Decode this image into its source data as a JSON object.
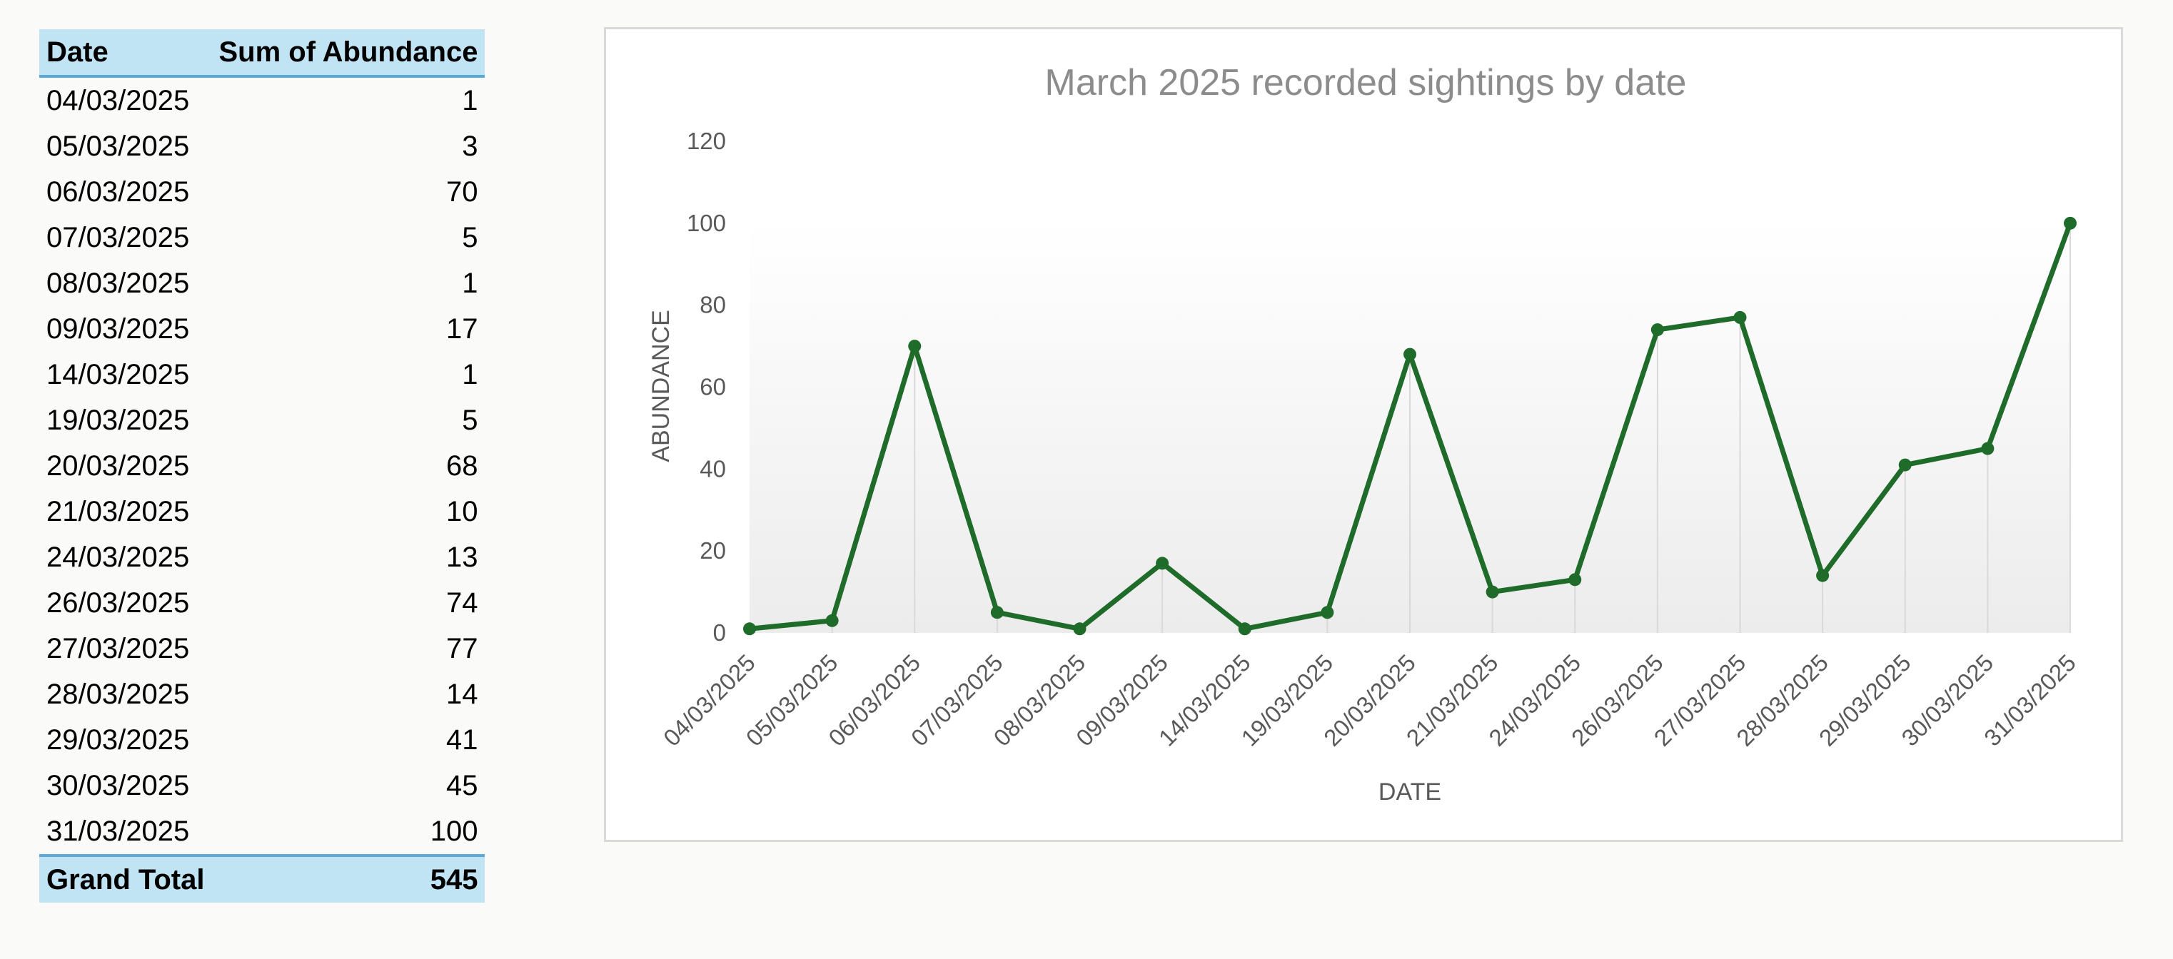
{
  "pivot": {
    "headers": {
      "date": "Date",
      "sum": "Sum of Abundance"
    },
    "rows": [
      {
        "date": "04/03/2025",
        "value": "1"
      },
      {
        "date": "05/03/2025",
        "value": "3"
      },
      {
        "date": "06/03/2025",
        "value": "70"
      },
      {
        "date": "07/03/2025",
        "value": "5"
      },
      {
        "date": "08/03/2025",
        "value": "1"
      },
      {
        "date": "09/03/2025",
        "value": "17"
      },
      {
        "date": "14/03/2025",
        "value": "1"
      },
      {
        "date": "19/03/2025",
        "value": "5"
      },
      {
        "date": "20/03/2025",
        "value": "68"
      },
      {
        "date": "21/03/2025",
        "value": "10"
      },
      {
        "date": "24/03/2025",
        "value": "13"
      },
      {
        "date": "26/03/2025",
        "value": "74"
      },
      {
        "date": "27/03/2025",
        "value": "77"
      },
      {
        "date": "28/03/2025",
        "value": "14"
      },
      {
        "date": "29/03/2025",
        "value": "41"
      },
      {
        "date": "30/03/2025",
        "value": "45"
      },
      {
        "date": "31/03/2025",
        "value": "100"
      }
    ],
    "total": {
      "label": "Grand Total",
      "value": "545"
    }
  },
  "colors": {
    "line": "#1e6b2a",
    "header_fill": "#c0e4f4",
    "header_border": "#5aa9d6"
  },
  "chart_data": {
    "type": "line",
    "title": "March 2025 recorded sightings by date",
    "xlabel": "DATE",
    "ylabel": "ABUNDANCE",
    "ylim": [
      0,
      120
    ],
    "yticks": [
      0,
      20,
      40,
      60,
      80,
      100,
      120
    ],
    "categories": [
      "04/03/2025",
      "05/03/2025",
      "06/03/2025",
      "07/03/2025",
      "08/03/2025",
      "09/03/2025",
      "14/03/2025",
      "19/03/2025",
      "20/03/2025",
      "21/03/2025",
      "24/03/2025",
      "26/03/2025",
      "27/03/2025",
      "28/03/2025",
      "29/03/2025",
      "30/03/2025",
      "31/03/2025"
    ],
    "series": [
      {
        "values": [
          1,
          3,
          70,
          5,
          1,
          17,
          1,
          5,
          68,
          10,
          13,
          74,
          77,
          14,
          41,
          45,
          100
        ]
      }
    ],
    "markers": true,
    "drop_lines": true,
    "legend": "none"
  }
}
